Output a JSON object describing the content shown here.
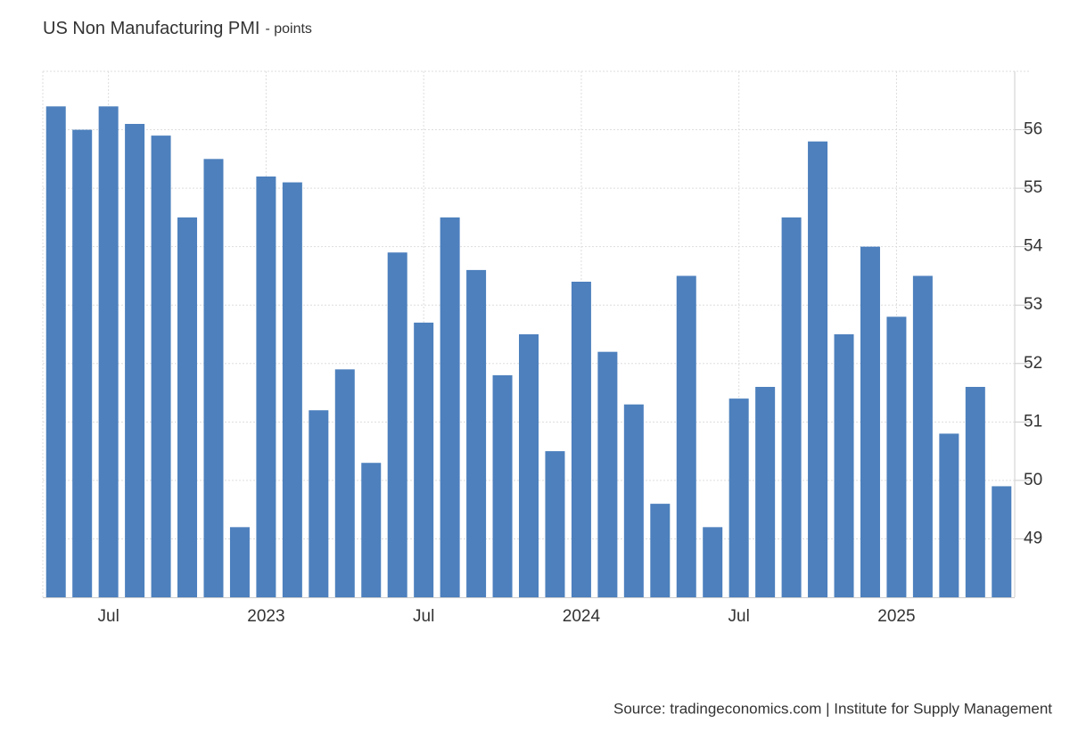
{
  "chart_data": {
    "type": "bar",
    "title": "US Non Manufacturing PMI",
    "subtitle": "- points",
    "source": "Source: tradingeconomics.com | Institute for Supply Management",
    "categories": [
      null,
      null,
      "Jul",
      null,
      null,
      null,
      null,
      null,
      "2023",
      null,
      null,
      null,
      null,
      null,
      "Jul",
      null,
      null,
      null,
      null,
      null,
      "2024",
      null,
      null,
      null,
      null,
      null,
      "Jul",
      null,
      null,
      null,
      null,
      null,
      "2025",
      null,
      null,
      null,
      null
    ],
    "values": [
      56.4,
      56.0,
      56.4,
      56.1,
      55.9,
      54.5,
      55.5,
      49.2,
      55.2,
      55.1,
      51.2,
      51.9,
      50.3,
      53.9,
      52.7,
      54.5,
      53.6,
      51.8,
      52.5,
      50.5,
      53.4,
      52.2,
      51.3,
      49.6,
      53.5,
      49.2,
      51.4,
      51.6,
      54.5,
      55.8,
      52.5,
      54.0,
      52.8,
      53.5,
      50.8,
      51.6,
      49.9
    ],
    "color": "#4d80bd",
    "ylim": [
      48,
      57
    ],
    "yticks": [
      49,
      50,
      51,
      52,
      53,
      54,
      55,
      56
    ],
    "grid": true
  }
}
